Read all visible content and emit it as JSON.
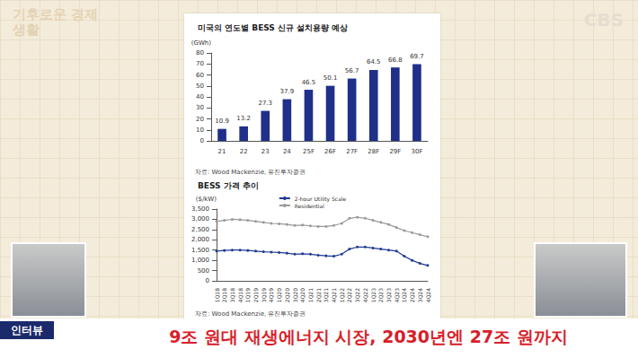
{
  "chart_data": [
    {
      "type": "bar",
      "title": "미국의 연도별 BESS 신규 설치용량 예상",
      "y_label": "(GWh)",
      "source": "자료: Wood Mackenzie, 유진투자증권",
      "categories": [
        "21",
        "22",
        "23",
        "24",
        "25F",
        "26F",
        "27F",
        "28F",
        "29F",
        "30F"
      ],
      "values": [
        10.9,
        13.2,
        27.3,
        37.9,
        46.5,
        50.1,
        56.7,
        64.5,
        66.8,
        69.7
      ],
      "color": "#1f2f8a",
      "ylim": [
        0,
        80
      ],
      "yticks": [
        0,
        10,
        20,
        30,
        40,
        50,
        60,
        70,
        80
      ],
      "grid": false,
      "data_labels": true
    },
    {
      "type": "line",
      "title": "BESS 가격 추이",
      "y_label": "($/kW)",
      "source": "자료: Wood Mackenzie, 유진투자증권",
      "categories": [
        "1Q18",
        "2Q18",
        "3Q18",
        "4Q18",
        "1Q19",
        "2Q19",
        "3Q19",
        "4Q19",
        "1Q20",
        "2Q20",
        "3Q20",
        "4Q20",
        "1Q21",
        "2Q21",
        "3Q21",
        "4Q21",
        "1Q22",
        "2Q22",
        "3Q22",
        "4Q22",
        "1Q23",
        "2Q23",
        "3Q23",
        "4Q23",
        "1Q24",
        "2Q24",
        "3Q24",
        "4Q24"
      ],
      "series": [
        {
          "name": "2-hour Utility Scale",
          "color": "#1f3a93",
          "marker": "circle",
          "values": [
            1450,
            1480,
            1500,
            1500,
            1480,
            1450,
            1420,
            1400,
            1380,
            1350,
            1300,
            1320,
            1300,
            1250,
            1220,
            1200,
            1300,
            1550,
            1650,
            1650,
            1600,
            1550,
            1500,
            1450,
            1200,
            1000,
            850,
            750
          ]
        },
        {
          "name": "Residential",
          "color": "#9a9a9a",
          "marker": "circle",
          "values": [
            2900,
            2950,
            3000,
            2980,
            2950,
            2900,
            2850,
            2800,
            2780,
            2750,
            2700,
            2720,
            2680,
            2650,
            2650,
            2700,
            2800,
            3050,
            3100,
            3050,
            2950,
            2850,
            2750,
            2600,
            2450,
            2350,
            2250,
            2150
          ]
        }
      ],
      "ylim": [
        0,
        3500
      ],
      "yticks": [
        0,
        500,
        {
          "value": 1000,
          "label": "1,000"
        },
        {
          "value": 1500,
          "label": "1,500"
        },
        {
          "value": 2000,
          "label": "2,000"
        },
        {
          "value": 2500,
          "label": "2,500"
        },
        {
          "value": 3000,
          "label": "3,000"
        },
        {
          "value": 3500,
          "label": "3,500"
        }
      ],
      "grid": false,
      "legend": "top"
    }
  ],
  "overlay": {
    "logo": "기후로운 경제생활",
    "channel": "CBS",
    "badge": "인터뷰",
    "headline": "9조 원대 재생에너지 시장, 2030년엔 27조 원까지"
  }
}
